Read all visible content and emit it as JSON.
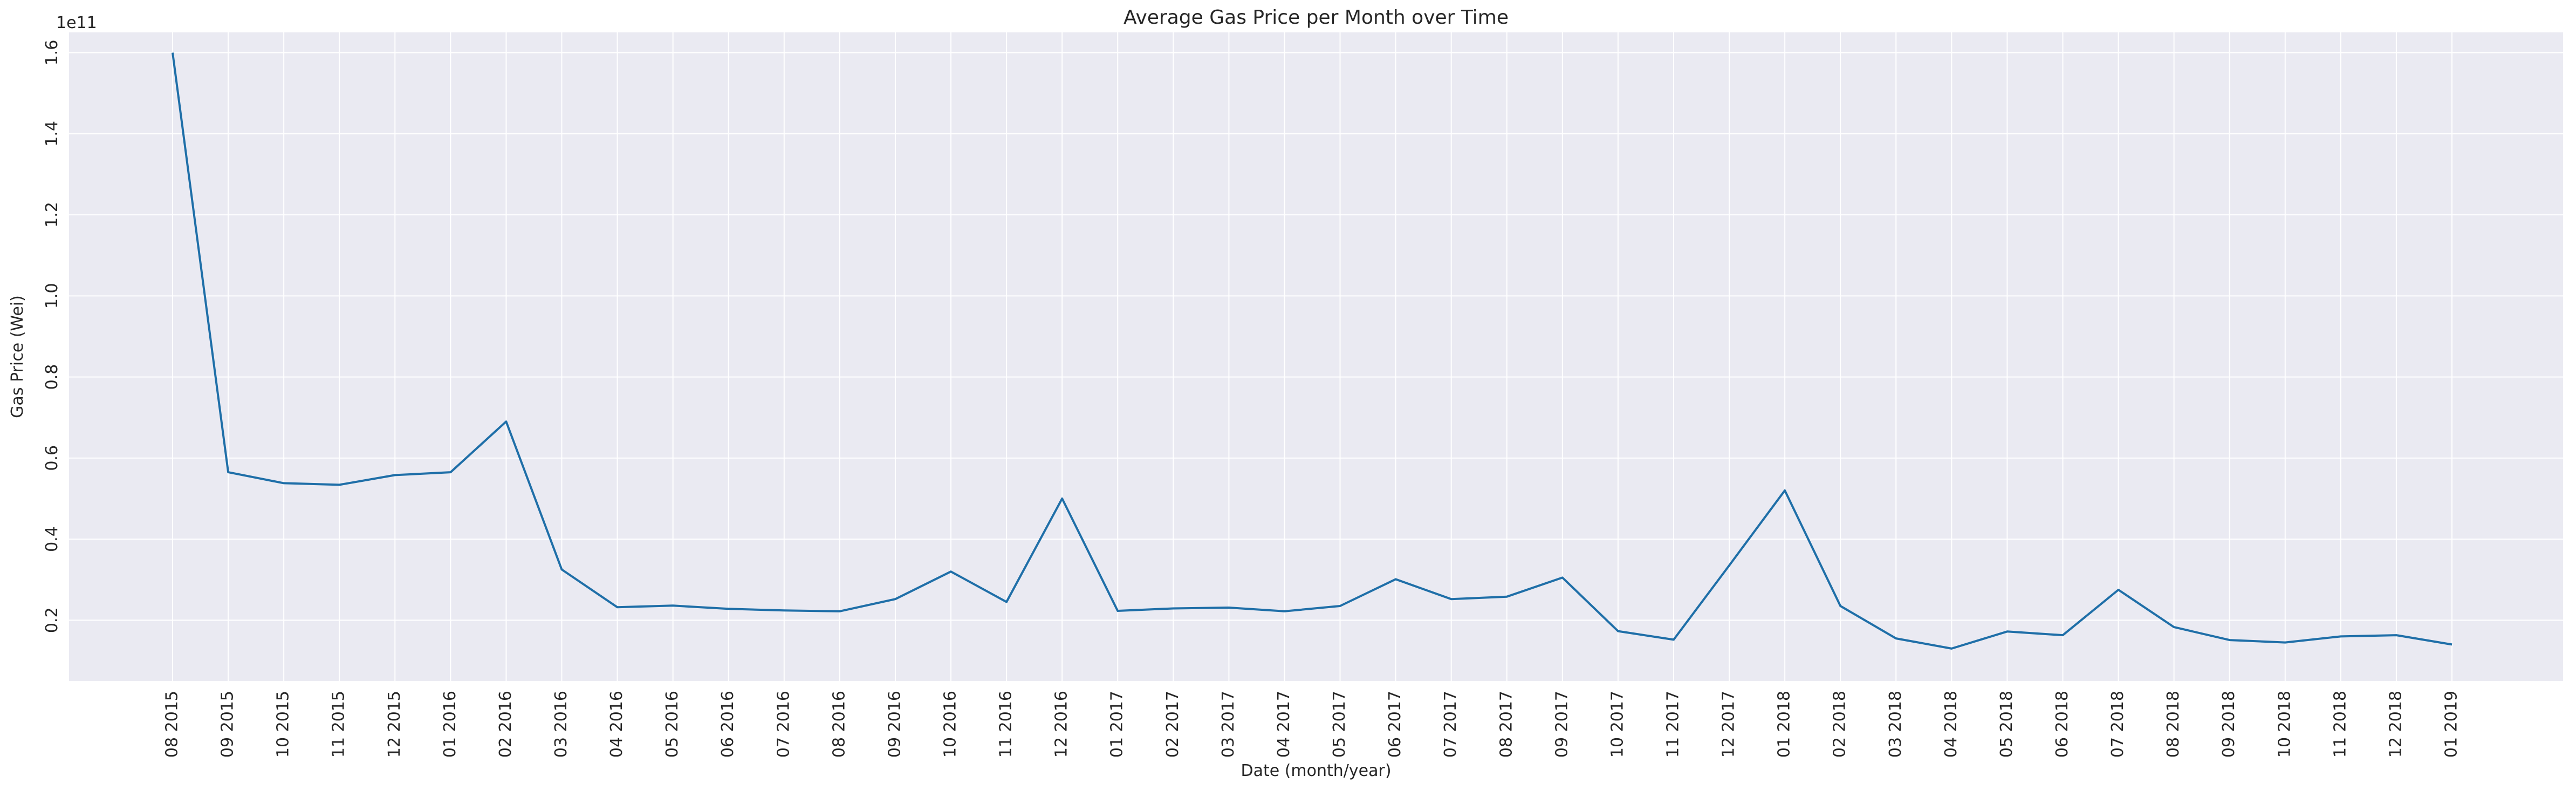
{
  "chart_data": {
    "type": "line",
    "title": "Average Gas Price per Month over Time",
    "xlabel": "Date (month/year)",
    "ylabel": "Gas Price (Wei)",
    "y_offset_label": "1e11",
    "y_scale": 100000000000,
    "ylim": [
      0.05,
      1.65
    ],
    "yticks": [
      0.2,
      0.4,
      0.6,
      0.8,
      1.0,
      1.2,
      1.4,
      1.6
    ],
    "ytick_labels": [
      "0.2",
      "0.4",
      "0.6",
      "0.8",
      "1.0",
      "1.2",
      "1.4",
      "1.6"
    ],
    "grid": true,
    "line_color": "#1f6fa8",
    "background_color": "#eaeaf2",
    "categories": [
      "08 2015",
      "09 2015",
      "10 2015",
      "11 2015",
      "12 2015",
      "01 2016",
      "02 2016",
      "03 2016",
      "04 2016",
      "05 2016",
      "06 2016",
      "07 2016",
      "08 2016",
      "09 2016",
      "10 2016",
      "11 2016",
      "12 2016",
      "01 2017",
      "02 2017",
      "03 2017",
      "04 2017",
      "05 2017",
      "06 2017",
      "07 2017",
      "08 2017",
      "09 2017",
      "10 2017",
      "11 2017",
      "12 2017",
      "01 2018",
      "02 2018",
      "03 2018",
      "04 2018",
      "05 2018",
      "06 2018",
      "07 2018",
      "08 2018",
      "09 2018",
      "10 2018",
      "11 2018",
      "12 2018",
      "01 2019"
    ],
    "values": [
      1.6,
      0.565,
      0.538,
      0.534,
      0.558,
      0.565,
      0.69,
      0.325,
      0.232,
      0.236,
      0.228,
      0.224,
      0.222,
      0.252,
      0.32,
      0.245,
      0.5,
      0.223,
      0.229,
      0.231,
      0.222,
      0.235,
      0.301,
      0.252,
      0.258,
      0.305,
      0.173,
      0.152,
      0.335,
      0.52,
      0.235,
      0.155,
      0.13,
      0.172,
      0.163,
      0.275,
      0.183,
      0.151,
      0.145,
      0.16,
      0.163,
      0.14
    ]
  }
}
